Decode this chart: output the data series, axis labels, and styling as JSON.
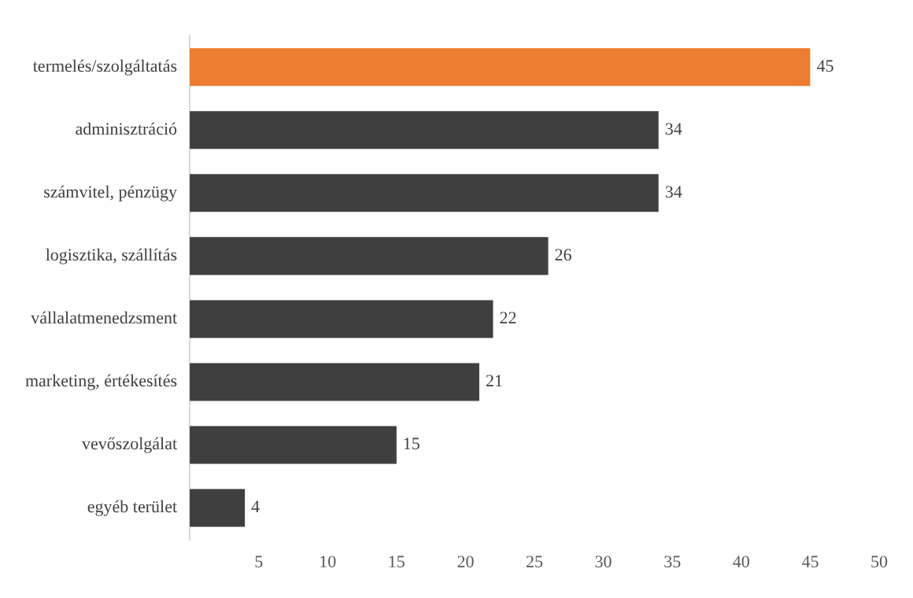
{
  "chart_data": {
    "type": "bar",
    "orientation": "horizontal",
    "categories": [
      "termelés/szolgáltatás",
      "adminisztráció",
      "számvitel, pénzügy",
      "logisztika, szállítás",
      "vállalatmenedzsment",
      "marketing, értékesítés",
      "vevőszolgálat",
      "egyéb terület"
    ],
    "values": [
      45,
      34,
      34,
      26,
      22,
      21,
      15,
      4
    ],
    "colors": [
      "#ed7d31",
      "#3f3f3f",
      "#3f3f3f",
      "#3f3f3f",
      "#3f3f3f",
      "#3f3f3f",
      "#3f3f3f",
      "#3f3f3f"
    ],
    "xlim": [
      0,
      50
    ],
    "xticks": [
      5,
      10,
      15,
      20,
      25,
      30,
      35,
      40,
      45,
      50
    ],
    "grid": false,
    "legend": false,
    "data_labels": true
  }
}
